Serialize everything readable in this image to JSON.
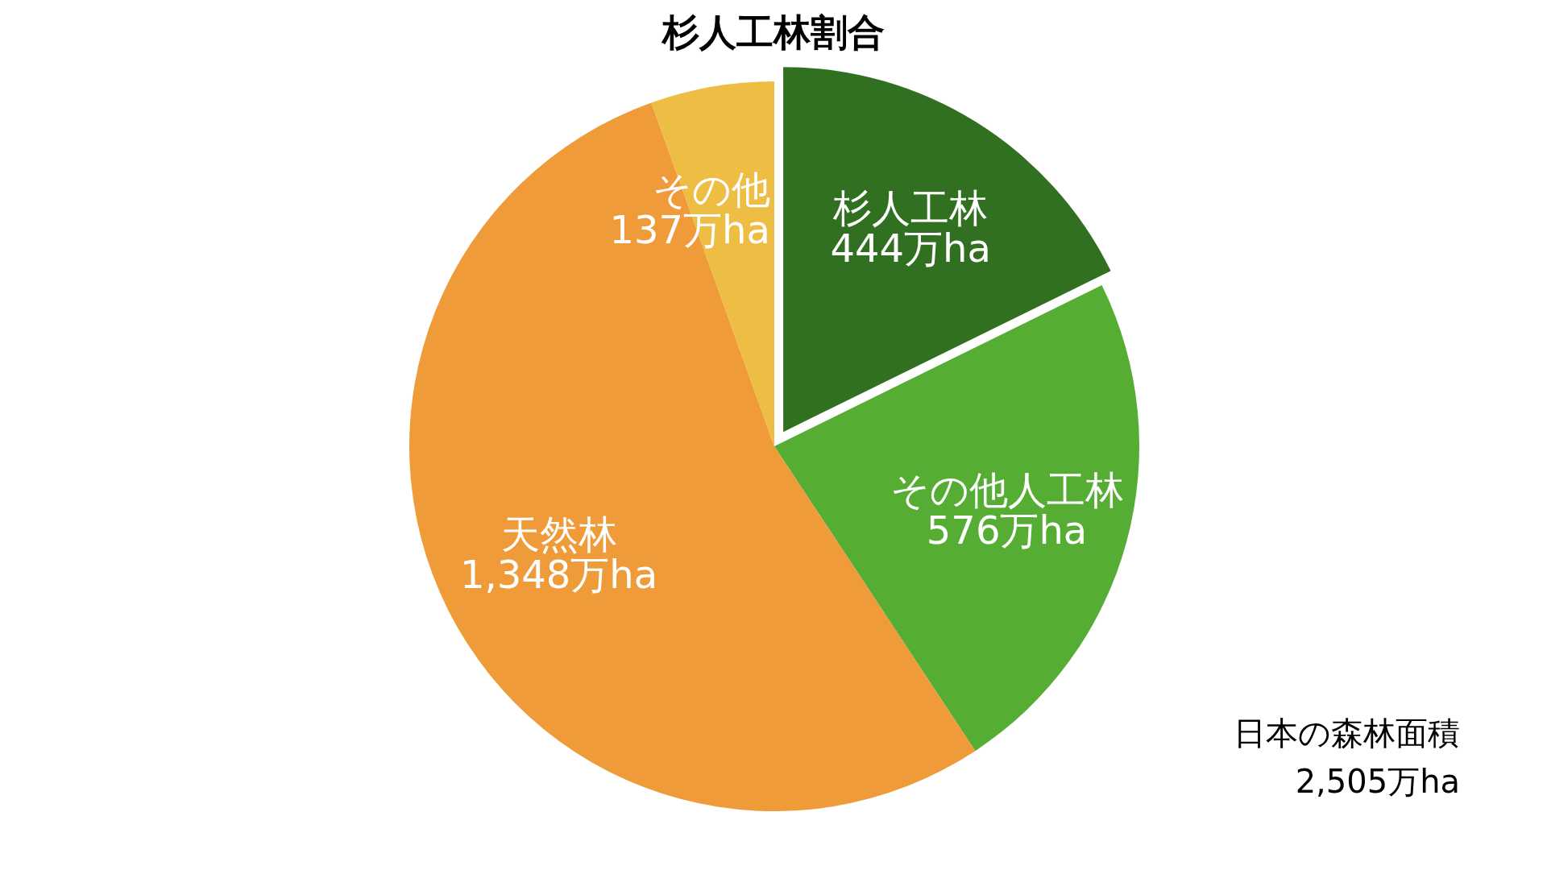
{
  "chart_data": {
    "type": "pie",
    "title": "杉人工林割合",
    "categories": [
      "杉人工林",
      "その他人工林",
      "天然林",
      "その他"
    ],
    "values": [
      444,
      576,
      1348,
      137
    ],
    "colors": [
      "#317021",
      "#55ae33",
      "#ef9b3a",
      "#edbd44"
    ],
    "value_labels": [
      "444万ha",
      "576万ha",
      "1,348万ha",
      "137万ha"
    ],
    "annotations": [
      "日本の森林面積",
      "2,505万ha"
    ]
  }
}
